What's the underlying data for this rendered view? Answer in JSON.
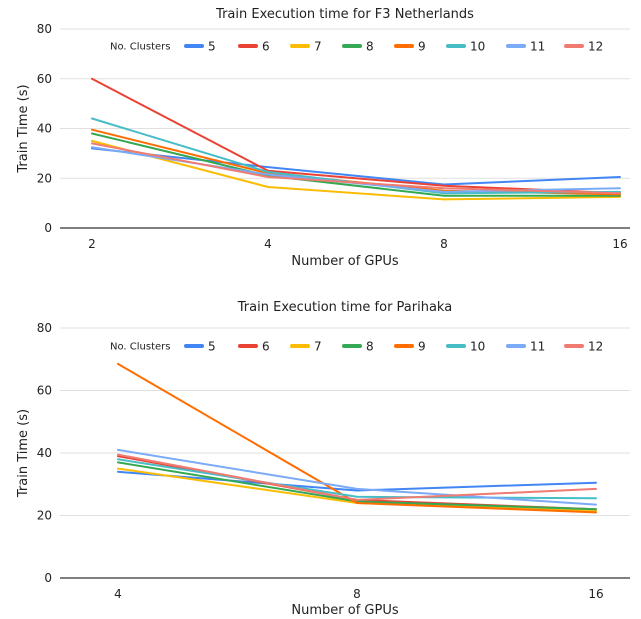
{
  "chart_data": [
    {
      "type": "line",
      "title": "Train Execution time for F3 Netherlands",
      "xlabel": "Number of GPUs",
      "ylabel": "Train Time (s)",
      "categories": [
        "2",
        "4",
        "8",
        "16"
      ],
      "ylim": [
        0,
        80
      ],
      "yticks": [
        "0",
        "20",
        "40",
        "60",
        "80"
      ],
      "grid": true,
      "legend": {
        "title": "No. Clusters",
        "placement": "top"
      },
      "series": [
        {
          "name": "5",
          "color": "#4285f4",
          "values": [
            32,
            24.5,
            17.5,
            20.5
          ]
        },
        {
          "name": "6",
          "color": "#ea4335",
          "values": [
            60,
            23,
            17,
            14
          ]
        },
        {
          "name": "7",
          "color": "#fbbc04",
          "values": [
            35,
            16.5,
            11.5,
            12.5
          ]
        },
        {
          "name": "8",
          "color": "#34a853",
          "values": [
            38,
            21,
            13,
            13
          ]
        },
        {
          "name": "9",
          "color": "#ff6d01",
          "values": [
            39.5,
            22,
            15,
            13.5
          ]
        },
        {
          "name": "10",
          "color": "#46bdc6",
          "values": [
            44,
            22.5,
            14,
            14.5
          ]
        },
        {
          "name": "11",
          "color": "#7baaf7",
          "values": [
            32.5,
            21.5,
            14.5,
            16
          ]
        },
        {
          "name": "12",
          "color": "#f07b72",
          "values": [
            34,
            20.5,
            16,
            14
          ]
        }
      ]
    },
    {
      "type": "line",
      "title": "Train Execution time for Parihaka",
      "xlabel": "Number of GPUs",
      "ylabel": "Train Time (s)",
      "categories": [
        "4",
        "8",
        "16"
      ],
      "ylim": [
        0,
        80
      ],
      "yticks": [
        "0",
        "20",
        "40",
        "60",
        "80"
      ],
      "grid": true,
      "legend": {
        "title": "No. Clusters",
        "placement": "top"
      },
      "series": [
        {
          "name": "5",
          "color": "#4285f4",
          "values": [
            34,
            28,
            30.5
          ]
        },
        {
          "name": "6",
          "color": "#ea4335",
          "values": [
            39,
            25,
            22
          ]
        },
        {
          "name": "7",
          "color": "#fbbc04",
          "values": [
            35,
            24,
            21.5
          ]
        },
        {
          "name": "8",
          "color": "#34a853",
          "values": [
            37,
            24.5,
            22
          ]
        },
        {
          "name": "9",
          "color": "#ff6d01",
          "values": [
            68.5,
            24,
            21
          ]
        },
        {
          "name": "10",
          "color": "#46bdc6",
          "values": [
            38,
            26,
            25.5
          ]
        },
        {
          "name": "11",
          "color": "#7baaf7",
          "values": [
            41,
            28.5,
            23.5
          ]
        },
        {
          "name": "12",
          "color": "#f07b72",
          "values": [
            39.5,
            25,
            28.5
          ]
        }
      ]
    }
  ]
}
